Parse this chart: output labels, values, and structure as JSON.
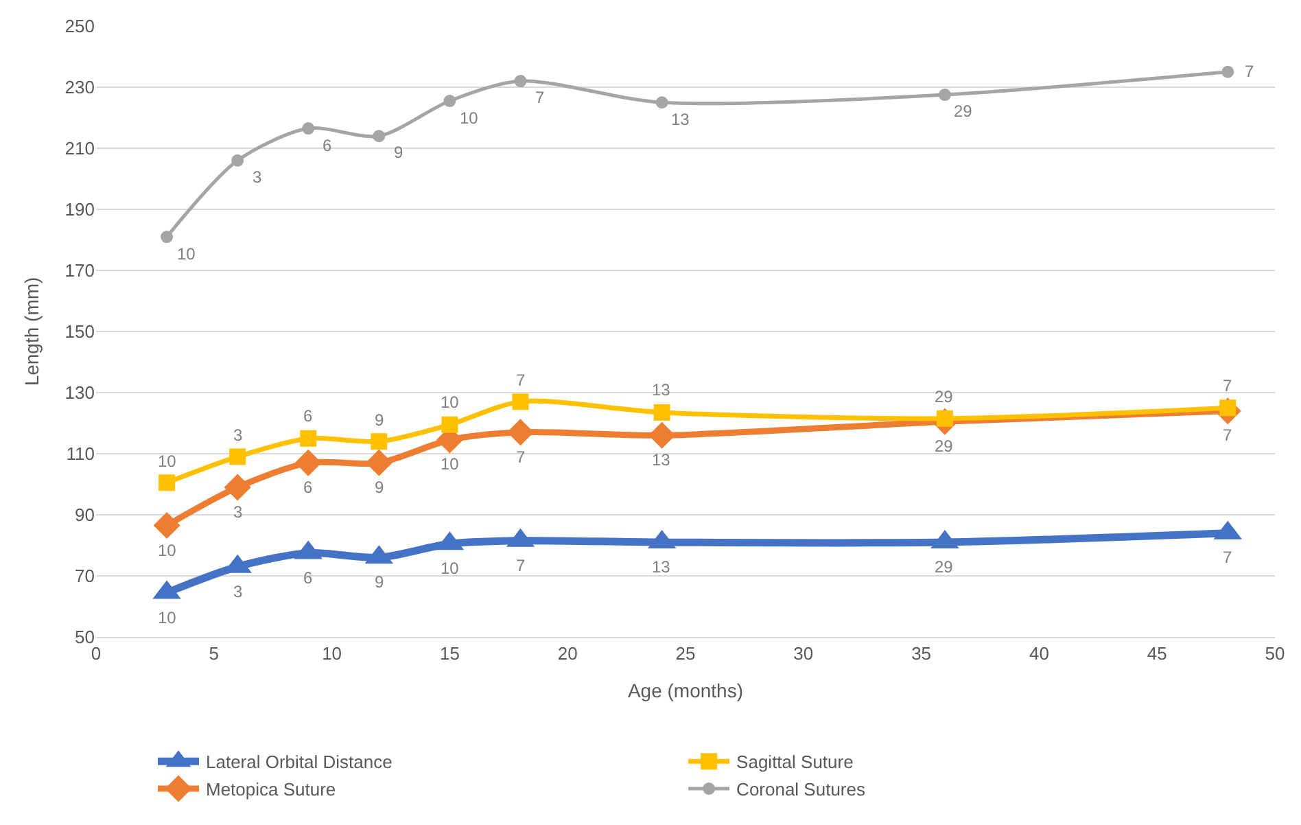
{
  "chart_data": {
    "type": "line",
    "xlabel": "Age (months)",
    "ylabel": "Length (mm)",
    "x": [
      3,
      6,
      9,
      12,
      15,
      18,
      24,
      36,
      48
    ],
    "xlim": [
      0,
      50
    ],
    "xticks": [
      0,
      5,
      10,
      15,
      20,
      25,
      30,
      35,
      40,
      45,
      50
    ],
    "ylim": [
      50,
      250
    ],
    "yticks": [
      50,
      70,
      90,
      110,
      130,
      150,
      170,
      190,
      210,
      230,
      250
    ],
    "grid": "y",
    "legend": "bottom",
    "line_style": "solid",
    "series": [
      {
        "name": "Lateral Orbital Distance",
        "color": "#4472c4",
        "marker": "triangle",
        "values": [
          64.5,
          73,
          77.5,
          76,
          80.5,
          81.5,
          81,
          81,
          84
        ]
      },
      {
        "name": "Metopica Suture",
        "color": "#ed7d31",
        "marker": "diamond",
        "values": [
          86.5,
          99,
          107,
          107,
          114.5,
          117,
          116,
          120.5,
          124
        ]
      },
      {
        "name": "Sagittal Suture",
        "color": "#ffc000",
        "marker": "square",
        "values": [
          100.5,
          109,
          115,
          114,
          119.5,
          127,
          123.5,
          121.5,
          125
        ]
      },
      {
        "name": "Coronal Sutures",
        "color": "#a5a5a5",
        "marker": "circle",
        "values": [
          181,
          206,
          216.5,
          214,
          225.5,
          232,
          225,
          227.5,
          235
        ]
      }
    ],
    "annotations": [
      {
        "text": "10",
        "x": 3,
        "y": 64.5
      },
      {
        "text": "3",
        "x": 6,
        "y": 73
      },
      {
        "text": "6",
        "x": 9,
        "y": 77.5
      },
      {
        "text": "9",
        "x": 12,
        "y": 76
      },
      {
        "text": "10",
        "x": 15,
        "y": 80.5
      },
      {
        "text": "7",
        "x": 18,
        "y": 81.5
      },
      {
        "text": "13",
        "x": 24,
        "y": 81
      },
      {
        "text": "29",
        "x": 36,
        "y": 81
      },
      {
        "text": "7",
        "x": 48,
        "y": 84
      },
      {
        "text": "10",
        "x": 3,
        "y": 86.5
      },
      {
        "text": "3",
        "x": 6,
        "y": 99
      },
      {
        "text": "6",
        "x": 9,
        "y": 107
      },
      {
        "text": "9",
        "x": 12,
        "y": 107
      },
      {
        "text": "10",
        "x": 15,
        "y": 114.5
      },
      {
        "text": "7",
        "x": 18,
        "y": 117
      },
      {
        "text": "13",
        "x": 24,
        "y": 116
      },
      {
        "text": "29",
        "x": 36,
        "y": 120.5
      },
      {
        "text": "7",
        "x": 48,
        "y": 124
      },
      {
        "text": "10",
        "x": 3,
        "y": 100.5
      },
      {
        "text": "3",
        "x": 6,
        "y": 109
      },
      {
        "text": "6",
        "x": 9,
        "y": 115
      },
      {
        "text": "9",
        "x": 12,
        "y": 114
      },
      {
        "text": "10",
        "x": 15,
        "y": 119.5
      },
      {
        "text": "7",
        "x": 18,
        "y": 127
      },
      {
        "text": "13",
        "x": 24,
        "y": 123.5
      },
      {
        "text": "29",
        "x": 36,
        "y": 121.5
      },
      {
        "text": "7",
        "x": 48,
        "y": 125
      },
      {
        "text": "10",
        "x": 3,
        "y": 181
      },
      {
        "text": "3",
        "x": 6,
        "y": 206
      },
      {
        "text": "6",
        "x": 9,
        "y": 216.5
      },
      {
        "text": "9",
        "x": 12,
        "y": 214
      },
      {
        "text": "10",
        "x": 15,
        "y": 225.5
      },
      {
        "text": "7",
        "x": 18,
        "y": 232
      },
      {
        "text": "13",
        "x": 24,
        "y": 225
      },
      {
        "text": "29",
        "x": 36,
        "y": 227.5
      },
      {
        "text": "7",
        "x": 48,
        "y": 235
      }
    ]
  }
}
